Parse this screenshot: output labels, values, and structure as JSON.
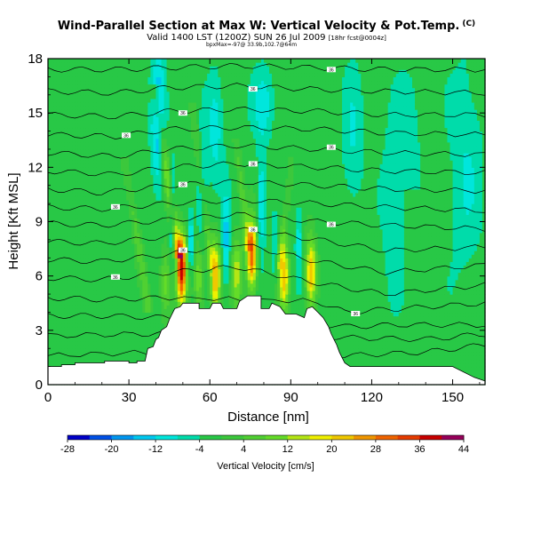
{
  "header": {
    "title": "Wind-Parallel Section at Max W: Vertical Velocity & Pot.Temp.",
    "title_mark": "(C)",
    "subtitle": "Valid 1400 LST (1200Z) SUN 26 Jul 2009",
    "subtitle_note": "[18hr fcst@0004z]",
    "info_line": "bpxMax=-97@ 33.9b,102.7@64m"
  },
  "chart_data": {
    "type": "heatmap",
    "xlabel": "Distance [nm]",
    "ylabel": "Height [Kft MSL]",
    "xlim": [
      0,
      162
    ],
    "ylim": [
      0,
      18
    ],
    "xticks": [
      "0",
      "30",
      "60",
      "90",
      "120",
      "150"
    ],
    "xtick_values": [
      0,
      30,
      60,
      90,
      120,
      150
    ],
    "yticks": [
      "0",
      "3",
      "6",
      "9",
      "12",
      "15",
      "18"
    ],
    "ytick_values": [
      0,
      3,
      6,
      9,
      12,
      15,
      18
    ],
    "colorbar": {
      "label": "Vertical Velocity [cm/s]",
      "tick_labels": [
        "-28",
        "-20",
        "-12",
        "-4",
        "4",
        "12",
        "20",
        "28",
        "36",
        "44"
      ],
      "levels": [
        -28,
        -24,
        -20,
        -16,
        -12,
        -8,
        -4,
        0,
        4,
        8,
        12,
        16,
        20,
        24,
        28,
        32,
        36,
        40,
        44
      ],
      "colors": [
        "#0000c8",
        "#0050e6",
        "#0096f0",
        "#00c8f0",
        "#00e6dc",
        "#00dcaa",
        "#28c846",
        "#3cc83c",
        "#50d032",
        "#64dc28",
        "#b4e614",
        "#f0f000",
        "#f0c800",
        "#f09600",
        "#f06400",
        "#e63c00",
        "#c80000",
        "#96005a"
      ]
    },
    "background_w": -2,
    "terrain": [
      [
        0,
        1.0
      ],
      [
        5,
        1.0
      ],
      [
        5,
        1.1
      ],
      [
        10,
        1.1
      ],
      [
        10,
        1.2
      ],
      [
        21,
        1.2
      ],
      [
        21,
        1.3
      ],
      [
        30,
        1.3
      ],
      [
        30,
        1.2
      ],
      [
        33,
        1.2
      ],
      [
        33,
        1.3
      ],
      [
        36,
        1.3
      ],
      [
        37,
        2.0
      ],
      [
        39,
        2.1
      ],
      [
        40,
        2.5
      ],
      [
        41,
        2.6
      ],
      [
        42,
        3.0
      ],
      [
        44,
        3.2
      ],
      [
        45,
        3.6
      ],
      [
        46,
        3.9
      ],
      [
        47,
        4.2
      ],
      [
        49,
        4.3
      ],
      [
        50,
        4.5
      ],
      [
        56,
        4.5
      ],
      [
        56,
        4.2
      ],
      [
        60,
        4.2
      ],
      [
        61,
        4.5
      ],
      [
        64,
        4.5
      ],
      [
        65,
        4.2
      ],
      [
        70,
        4.2
      ],
      [
        71,
        4.6
      ],
      [
        74,
        4.9
      ],
      [
        79,
        4.9
      ],
      [
        79,
        4.2
      ],
      [
        82,
        4.2
      ],
      [
        83,
        4.5
      ],
      [
        86,
        4.3
      ],
      [
        88,
        3.9
      ],
      [
        91,
        3.9
      ],
      [
        92,
        3.9
      ],
      [
        95,
        3.7
      ],
      [
        96,
        4.2
      ],
      [
        98,
        4.3
      ],
      [
        100,
        4.0
      ],
      [
        102,
        3.7
      ],
      [
        104,
        3.2
      ],
      [
        105,
        2.8
      ],
      [
        106,
        2.5
      ],
      [
        107,
        2.2
      ],
      [
        108,
        1.8
      ],
      [
        109,
        1.5
      ],
      [
        110,
        1.2
      ],
      [
        112,
        1.0
      ],
      [
        120,
        1.0
      ],
      [
        130,
        1.0
      ],
      [
        140,
        1.0
      ],
      [
        150,
        1.0
      ],
      [
        158,
        0.4
      ],
      [
        162,
        0.2
      ]
    ],
    "updraft_cores": [
      {
        "x": 49.5,
        "y": 6.4,
        "peak": 40
      },
      {
        "x": 62.0,
        "y": 6.0,
        "peak": 28
      },
      {
        "x": 75.5,
        "y": 7.2,
        "peak": 34
      },
      {
        "x": 87.5,
        "y": 6.0,
        "peak": 24
      },
      {
        "x": 97.5,
        "y": 6.2,
        "peak": 26
      },
      {
        "x": 70.0,
        "y": 6.2,
        "peak": 16
      },
      {
        "x": 56.0,
        "y": 6.0,
        "peak": 14
      },
      {
        "x": 43.5,
        "y": 5.6,
        "peak": 12
      }
    ],
    "plumes": [
      {
        "x0": 48,
        "y0": 7.5,
        "x1": 40,
        "y1": 16.0,
        "w": 1.8,
        "peak": 18
      },
      {
        "x0": 37,
        "y0": 4.5,
        "x1": 29,
        "y1": 12.0,
        "w": 1.6,
        "peak": 10
      },
      {
        "x0": 60,
        "y0": 7.0,
        "x1": 54,
        "y1": 15.0,
        "w": 1.4,
        "peak": 10
      },
      {
        "x0": 74,
        "y0": 8.0,
        "x1": 70,
        "y1": 13.0,
        "w": 1.4,
        "peak": 10
      },
      {
        "x0": 86,
        "y0": 7.0,
        "x1": 90,
        "y1": 12.0,
        "w": 1.3,
        "peak": 8
      }
    ],
    "downdrafts": [
      {
        "x": 41,
        "y": 14.5,
        "sx": 2.5,
        "sy": 3.5,
        "v": -16
      },
      {
        "x": 46,
        "y": 9.5,
        "sx": 1.2,
        "sy": 2.5,
        "v": -14
      },
      {
        "x": 53,
        "y": 7.8,
        "sx": 1.0,
        "sy": 1.5,
        "v": -12
      },
      {
        "x": 57,
        "y": 10.5,
        "sx": 2.0,
        "sy": 3.0,
        "v": -10
      },
      {
        "x": 66,
        "y": 8.0,
        "sx": 1.5,
        "sy": 2.5,
        "v": -12
      },
      {
        "x": 62,
        "y": 14.0,
        "sx": 3.0,
        "sy": 3.0,
        "v": -8
      },
      {
        "x": 79,
        "y": 10.0,
        "sx": 1.5,
        "sy": 3.0,
        "v": -10
      },
      {
        "x": 84,
        "y": 7.5,
        "sx": 1.0,
        "sy": 1.5,
        "v": -8
      },
      {
        "x": 93,
        "y": 8.0,
        "sx": 1.3,
        "sy": 2.0,
        "v": -8
      },
      {
        "x": 80,
        "y": 15.5,
        "sx": 4.0,
        "sy": 2.0,
        "v": -8
      },
      {
        "x": 113,
        "y": 13.5,
        "sx": 4.0,
        "sy": 4.0,
        "v": -6
      },
      {
        "x": 128,
        "y": 10.0,
        "sx": 4.0,
        "sy": 5.0,
        "v": -6
      },
      {
        "x": 134,
        "y": 14.0,
        "sx": 4.0,
        "sy": 3.0,
        "v": -5
      },
      {
        "x": 155,
        "y": 12.0,
        "sx": 6.0,
        "sy": 6.0,
        "v": -6
      }
    ],
    "theta_label": "36",
    "theta_contours": [
      [
        [
          0,
          1.6
        ],
        [
          40,
          1.8
        ],
        [
          80,
          1.8
        ],
        [
          110,
          1.6
        ],
        [
          140,
          1.8
        ],
        [
          162,
          2.2
        ]
      ],
      [
        [
          0,
          2.7
        ],
        [
          35,
          2.8
        ],
        [
          60,
          2.9
        ],
        [
          100,
          2.7
        ],
        [
          110,
          2.6
        ],
        [
          140,
          2.5
        ],
        [
          162,
          2.8
        ]
      ],
      [
        [
          0,
          3.8
        ],
        [
          20,
          3.8
        ],
        [
          45,
          3.7
        ],
        [
          110,
          3.2
        ],
        [
          130,
          3.3
        ],
        [
          162,
          3.3
        ]
      ],
      [
        [
          0,
          4.8
        ],
        [
          20,
          4.7
        ],
        [
          45,
          4.8
        ],
        [
          100,
          4.6
        ],
        [
          110,
          4.0
        ],
        [
          130,
          4.2
        ],
        [
          162,
          4.5
        ]
      ],
      [
        [
          0,
          5.9
        ],
        [
          20,
          5.8
        ],
        [
          45,
          6.2
        ],
        [
          70,
          6.5
        ],
        [
          100,
          5.6
        ],
        [
          125,
          5.0
        ],
        [
          162,
          5.5
        ]
      ],
      [
        [
          0,
          6.9
        ],
        [
          20,
          6.8
        ],
        [
          45,
          7.2
        ],
        [
          70,
          7.8
        ],
        [
          100,
          6.8
        ],
        [
          125,
          6.2
        ],
        [
          162,
          6.6
        ]
      ],
      [
        [
          0,
          7.9
        ],
        [
          20,
          7.8
        ],
        [
          45,
          8.2
        ],
        [
          70,
          8.6
        ],
        [
          100,
          8.0
        ],
        [
          125,
          7.4
        ],
        [
          162,
          7.6
        ]
      ],
      [
        [
          0,
          8.9
        ],
        [
          20,
          8.8
        ],
        [
          45,
          9.1
        ],
        [
          70,
          9.4
        ],
        [
          100,
          9.0
        ],
        [
          125,
          8.8
        ],
        [
          162,
          8.6
        ]
      ],
      [
        [
          0,
          9.8
        ],
        [
          20,
          9.7
        ],
        [
          45,
          10.0
        ],
        [
          70,
          10.2
        ],
        [
          100,
          10.0
        ],
        [
          125,
          9.8
        ],
        [
          162,
          9.6
        ]
      ],
      [
        [
          0,
          10.8
        ],
        [
          20,
          10.6
        ],
        [
          45,
          11.0
        ],
        [
          70,
          11.2
        ],
        [
          100,
          11.0
        ],
        [
          125,
          10.8
        ],
        [
          162,
          10.7
        ]
      ],
      [
        [
          0,
          11.8
        ],
        [
          25,
          11.6
        ],
        [
          45,
          12.0
        ],
        [
          70,
          12.2
        ],
        [
          100,
          12.0
        ],
        [
          125,
          11.8
        ],
        [
          162,
          11.7
        ]
      ],
      [
        [
          0,
          12.8
        ],
        [
          25,
          12.6
        ],
        [
          45,
          13.0
        ],
        [
          70,
          13.2
        ],
        [
          100,
          13.0
        ],
        [
          125,
          12.8
        ],
        [
          162,
          12.7
        ]
      ],
      [
        [
          0,
          13.8
        ],
        [
          25,
          13.7
        ],
        [
          45,
          14.1
        ],
        [
          70,
          14.2
        ],
        [
          100,
          14.1
        ],
        [
          125,
          13.9
        ],
        [
          162,
          13.8
        ]
      ],
      [
        [
          0,
          14.9
        ],
        [
          25,
          14.8
        ],
        [
          45,
          15.1
        ],
        [
          70,
          15.2
        ],
        [
          100,
          15.1
        ],
        [
          125,
          14.9
        ],
        [
          162,
          14.9
        ]
      ],
      [
        [
          0,
          16.2
        ],
        [
          25,
          16.1
        ],
        [
          45,
          16.4
        ],
        [
          70,
          16.5
        ],
        [
          100,
          16.3
        ],
        [
          125,
          16.2
        ],
        [
          162,
          16.1
        ]
      ],
      [
        [
          0,
          17.4
        ],
        [
          25,
          17.4
        ],
        [
          45,
          17.5
        ],
        [
          70,
          17.6
        ],
        [
          100,
          17.5
        ],
        [
          125,
          17.4
        ],
        [
          162,
          17.4
        ]
      ]
    ]
  }
}
